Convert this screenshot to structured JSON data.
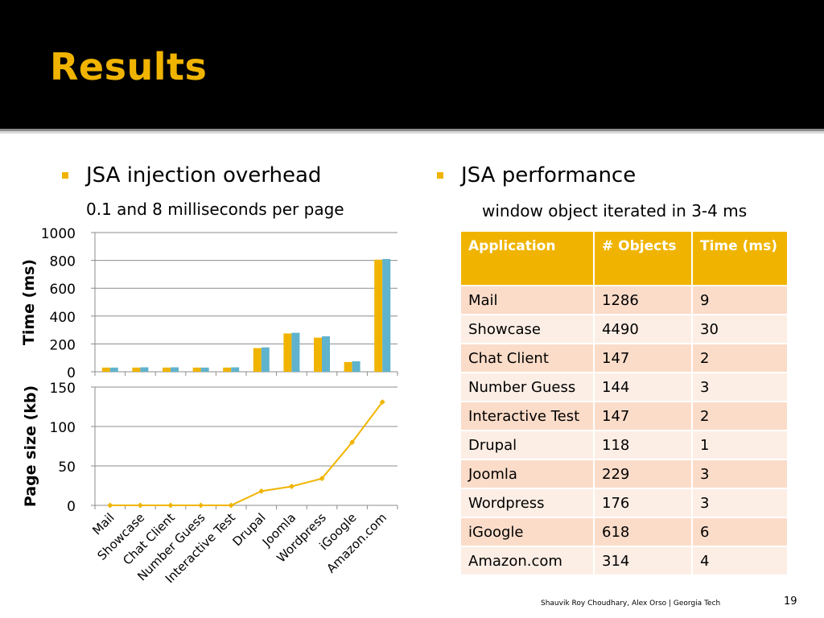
{
  "slide": {
    "title": "Results",
    "left_bullet": "JSA injection overhead",
    "left_sub": "0.1 and 8 milliseconds per page",
    "right_bullet": "JSA performance",
    "right_sub": "window object iterated in 3-4 ms",
    "footer": "Shauvik Roy Choudhary, Alex Orso  |  Georgia Tech",
    "page_number": "19",
    "accent_color": "#f0b400"
  },
  "table": {
    "headers": [
      "Application",
      "# Objects",
      "Time (ms)"
    ],
    "rows": [
      [
        "Mail",
        "1286",
        "9"
      ],
      [
        "Showcase",
        "4490",
        "30"
      ],
      [
        "Chat Client",
        "147",
        "2"
      ],
      [
        "Number Guess",
        "144",
        "3"
      ],
      [
        "Interactive Test",
        "147",
        "2"
      ],
      [
        "Drupal",
        "118",
        "1"
      ],
      [
        "Joomla",
        "229",
        "3"
      ],
      [
        "Wordpress",
        "176",
        "3"
      ],
      [
        "iGoogle",
        "618",
        "6"
      ],
      [
        "Amazon.com",
        "314",
        "4"
      ]
    ]
  },
  "chart_data": [
    {
      "type": "bar",
      "categories": [
        "Mail",
        "Showcase",
        "Chat Client",
        "Number Guess",
        "Interactive Test",
        "Drupal",
        "Joomla",
        "Wordpress",
        "iGoogle",
        "Amazon.com"
      ],
      "series": [
        {
          "color": "#f0b400",
          "values": [
            30,
            30,
            30,
            30,
            30,
            170,
            275,
            245,
            70,
            805
          ]
        },
        {
          "color": "#5fb3cd",
          "values": [
            30,
            32,
            32,
            30,
            32,
            175,
            280,
            255,
            75,
            810
          ]
        }
      ],
      "ylabel": "Time (ms)",
      "ylim": [
        0,
        1000
      ],
      "yticks": [
        "0",
        "200",
        "400",
        "600",
        "800",
        "1000"
      ],
      "grid": true
    },
    {
      "type": "line",
      "categories": [
        "Mail",
        "Showcase",
        "Chat Client",
        "Number Guess",
        "Interactive Test",
        "Drupal",
        "Joomla",
        "Wordpress",
        "iGoogle",
        "Amazon.com"
      ],
      "series": [
        {
          "color": "#f0b400",
          "values": [
            0,
            0,
            0,
            0,
            0,
            18,
            24,
            34,
            80,
            131
          ]
        }
      ],
      "ylabel": "Page size (kb)",
      "ylim": [
        0,
        150
      ],
      "yticks": [
        "0",
        "50",
        "100",
        "150"
      ],
      "grid": true
    }
  ]
}
